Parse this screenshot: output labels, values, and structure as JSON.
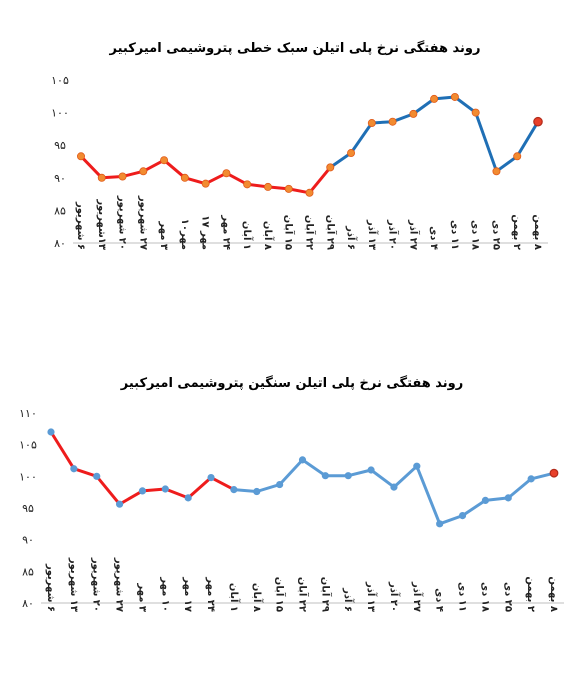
{
  "chart_data": [
    {
      "type": "line",
      "title": "روند هفتگی نرخ پلی اتیلن سبک خطی پتروشیمی امیرکبیر",
      "ylim": [
        80,
        105
      ],
      "yticks": [
        "۸۰",
        "۸۵",
        "۹۰",
        "۹۵",
        "۱۰۰",
        "۱۰۵"
      ],
      "grid": false,
      "categories": [
        "۶ شهریور",
        "۱۳شهریور",
        "۲۰ شهریور",
        "۲۷ شهریور",
        "۳ مهر",
        "مهر۱۰",
        "مهر ۱۷",
        "۲۴ مهر",
        "۱ آبان",
        "۸ آبان",
        "۱۵ آبان",
        "۲۲ آبان",
        "۲۹ آبان",
        "۶ آذر",
        "۱۳ آذر",
        "۲۰ آذر",
        "۲۷ آذر",
        "۴ دی",
        "۱۱ دی",
        "۱۸ دی",
        "۲۵ دی",
        "۲ بهمن",
        "۸ بهمن"
      ],
      "values": [
        93.3,
        90.0,
        90.2,
        91.0,
        92.7,
        90.0,
        89.1,
        90.7,
        89.0,
        88.6,
        88.3,
        87.7,
        91.6,
        93.8,
        98.4,
        98.6,
        99.8,
        102.1,
        102.4,
        100.0,
        91.0,
        93.3,
        98.6
      ],
      "colors": {
        "line": "#1f6fb5",
        "highlight": "#ee1c1c",
        "marker": "#f28b30",
        "marker_edge": "#e05a1a",
        "last_marker": "#e8402a"
      },
      "highlight_range": [
        0,
        12
      ]
    },
    {
      "type": "line",
      "title": "روند هفتگی نرخ پلی اتیلن سنگین پتروشیمی امیرکبیر",
      "ylim": [
        80,
        110
      ],
      "yticks": [
        "۸۰",
        "۸۵",
        "۹۰",
        "۹۵",
        "۱۰۰",
        "۱۰۵",
        "۱۱۰"
      ],
      "grid": false,
      "categories": [
        "۶ شهریور",
        "۱۳ شهریور",
        "۲۰ شهریور",
        "۲۷ شهریور",
        "۳ مهر",
        "۱۰ مهر",
        "۱۷ مهر",
        "۲۴ مهر",
        "۱ آبان",
        "۸ آبان",
        "۱۵ آبان",
        "۲۲ آبان",
        "۲۹ آبان",
        "۶ آذر",
        "۱۳ آذر",
        "۲۰ آذر",
        "۲۷ آذر",
        "۴ دی",
        "۱۱ دی",
        "۱۸ دی",
        "۲۵ دی",
        "۲ بهمن",
        "۸ بهمن"
      ],
      "values": [
        107.0,
        101.2,
        100.0,
        95.6,
        97.7,
        98.0,
        96.6,
        99.8,
        97.9,
        97.6,
        98.7,
        102.6,
        100.1,
        100.1,
        101.0,
        98.3,
        101.6,
        92.5,
        93.8,
        96.2,
        96.6,
        99.6,
        100.5
      ],
      "colors": {
        "line": "#5b9bd5",
        "highlight": "#ee1c1c",
        "marker": "#5b9bd5",
        "last_marker": "#e8402a"
      },
      "highlight_range": [
        0,
        8
      ]
    }
  ]
}
